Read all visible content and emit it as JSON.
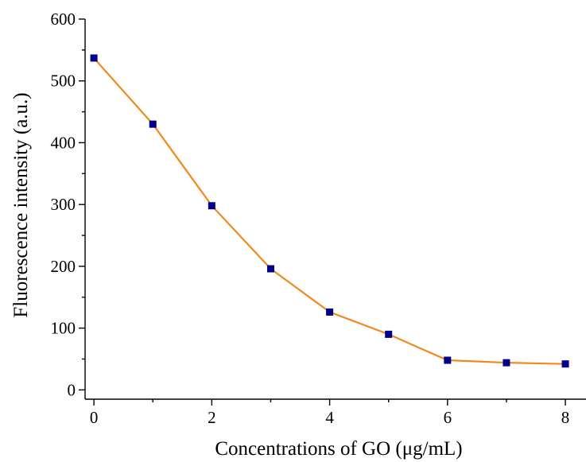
{
  "chart_data": {
    "type": "line",
    "title": "",
    "xlabel": "Concentrations of GO (μg/mL)",
    "ylabel": "Fluorescence intensity (a.u.)",
    "xlim": [
      -0.15,
      8.35
    ],
    "ylim": [
      -15,
      600
    ],
    "xticks": [
      0,
      2,
      4,
      6,
      8
    ],
    "xticks_minor": [
      1,
      3,
      5,
      7
    ],
    "yticks": [
      0,
      100,
      200,
      300,
      400,
      500,
      600
    ],
    "yticks_minor": [
      50,
      150,
      250,
      350,
      450,
      550
    ],
    "grid": false,
    "legend": "none",
    "series": [
      {
        "x": [
          0,
          1,
          2,
          3,
          4,
          5,
          6,
          7,
          8
        ],
        "y": [
          537,
          430,
          298,
          196,
          126,
          90,
          48,
          44,
          42
        ],
        "line_color": "#f08a1c",
        "marker_color": "#00008b",
        "marker": "square"
      }
    ]
  }
}
